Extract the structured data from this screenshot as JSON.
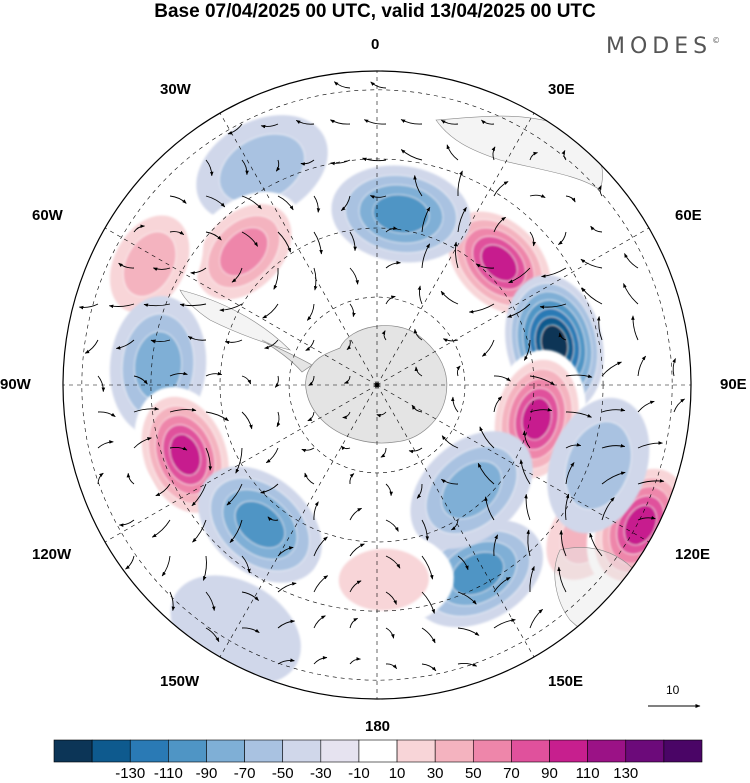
{
  "title": "Base 07/04/2025 00 UTC, valid 13/04/2025 00 UTC",
  "logo": {
    "text": "MODES",
    "mark": "©"
  },
  "longitude_labels": {
    "lon_0": "0",
    "lon_30e": "30E",
    "lon_60e": "60E",
    "lon_90e": "90E",
    "lon_120e": "120E",
    "lon_150e": "150E",
    "lon_180": "180",
    "lon_150w": "150W",
    "lon_120w": "120W",
    "lon_90w": "90W",
    "lon_60w": "60W",
    "lon_30w": "30W"
  },
  "reference_vector": {
    "value": "10"
  },
  "colorbar": {
    "colors": [
      "#0c3557",
      "#0e5a8e",
      "#2a7ab5",
      "#4f95c5",
      "#7fafd6",
      "#a9c2e1",
      "#d0d7ea",
      "#e6e3f0",
      "#ffffff",
      "#f8d5d8",
      "#f4b3bf",
      "#ee86aa",
      "#e0519c",
      "#c71f8e",
      "#9b1286",
      "#6c0a7a",
      "#4a0566"
    ],
    "labels": [
      "-130",
      "-110",
      "-90",
      "-70",
      "-50",
      "-30",
      "-10",
      "10",
      "30",
      "50",
      "70",
      "90",
      "110",
      "130"
    ]
  },
  "anomaly_centers": [
    {
      "lon": 45,
      "r_frac": 0.55,
      "value": 120
    },
    {
      "lon": 77,
      "r_frac": 0.58,
      "value": -140
    },
    {
      "lon": 102,
      "r_frac": 0.52,
      "value": 110
    },
    {
      "lon": 125,
      "r_frac": 0.82,
      "value": 60
    },
    {
      "lon": 118,
      "r_frac": 0.95,
      "value": 110
    },
    {
      "lon": 152,
      "r_frac": 0.68,
      "value": -80
    },
    {
      "lon": 138,
      "r_frac": 0.45,
      "value": -55
    },
    {
      "lon": 8,
      "r_frac": 0.55,
      "value": -75
    },
    {
      "lon": 8,
      "r_frac": 0.93,
      "value": 25
    },
    {
      "lon": -28,
      "r_frac": 0.78,
      "value": -45
    },
    {
      "lon": -45,
      "r_frac": 0.6,
      "value": 80
    },
    {
      "lon": -62,
      "r_frac": 0.82,
      "value": 65
    },
    {
      "lon": -85,
      "r_frac": 0.7,
      "value": -60
    },
    {
      "lon": -110,
      "r_frac": 0.65,
      "value": 110
    },
    {
      "lon": -140,
      "r_frac": 0.58,
      "value": -85
    },
    {
      "lon": 178,
      "r_frac": 0.62,
      "value": 40
    },
    {
      "lon": -150,
      "r_frac": 0.9,
      "value": -25
    },
    {
      "lon": 65,
      "r_frac": 0.95,
      "value": 25
    },
    {
      "lon": 110,
      "r_frac": 0.75,
      "value": -40
    },
    {
      "lon": -115,
      "r_frac": 0.93,
      "value": 20
    }
  ]
}
